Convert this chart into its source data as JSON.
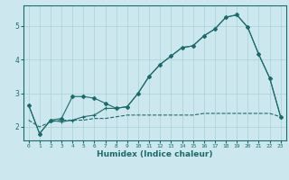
{
  "xlabel": "Humidex (Indice chaleur)",
  "ylabel": "",
  "bg_color": "#cce8ee",
  "grid_color": "#aad0d8",
  "line_color": "#1a6b6b",
  "xlim": [
    -0.5,
    23.5
  ],
  "ylim": [
    1.6,
    5.6
  ],
  "yticks": [
    2,
    3,
    4,
    5
  ],
  "xticks": [
    0,
    1,
    2,
    3,
    4,
    5,
    6,
    7,
    8,
    9,
    10,
    11,
    12,
    13,
    14,
    15,
    16,
    17,
    18,
    19,
    20,
    21,
    22,
    23
  ],
  "series1_x": [
    0,
    1,
    2,
    3,
    4,
    5,
    6,
    7,
    8,
    9,
    10,
    11,
    12,
    13,
    14,
    15,
    16,
    17,
    18,
    19,
    20,
    21,
    22,
    23
  ],
  "series1_y": [
    2.65,
    1.8,
    2.2,
    2.25,
    2.9,
    2.9,
    2.85,
    2.7,
    2.55,
    2.6,
    3.0,
    3.5,
    3.85,
    4.1,
    4.35,
    4.4,
    4.7,
    4.9,
    5.25,
    5.32,
    4.95,
    4.15,
    3.45,
    2.3
  ],
  "series2_x": [
    0,
    1,
    2,
    3,
    4,
    5,
    6,
    7,
    8,
    9,
    10,
    11,
    12,
    13,
    14,
    15,
    16,
    17,
    18,
    19,
    20,
    21,
    22,
    23
  ],
  "series2_y": [
    2.65,
    1.8,
    2.2,
    2.15,
    2.2,
    2.3,
    2.35,
    2.55,
    2.55,
    2.6,
    3.0,
    3.5,
    3.85,
    4.1,
    4.35,
    4.4,
    4.7,
    4.9,
    5.25,
    5.32,
    4.95,
    4.15,
    3.45,
    2.3
  ],
  "series3_x": [
    0,
    1,
    2,
    3,
    4,
    5,
    6,
    7,
    8,
    9,
    10,
    11,
    12,
    13,
    14,
    15,
    16,
    17,
    18,
    19,
    20,
    21,
    22,
    23
  ],
  "series3_y": [
    2.2,
    2.0,
    2.15,
    2.2,
    2.2,
    2.2,
    2.25,
    2.25,
    2.3,
    2.35,
    2.35,
    2.35,
    2.35,
    2.35,
    2.35,
    2.35,
    2.4,
    2.4,
    2.4,
    2.4,
    2.4,
    2.4,
    2.4,
    2.3
  ]
}
